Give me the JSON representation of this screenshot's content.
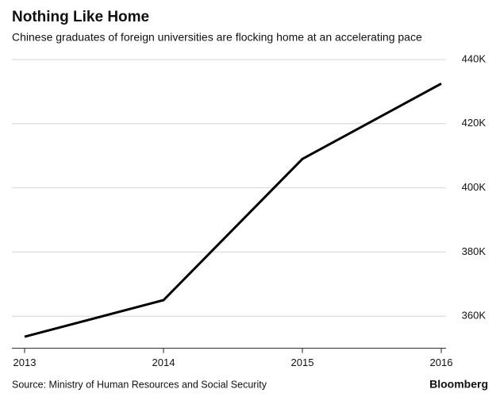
{
  "chart_data": {
    "type": "line",
    "title": "Nothing Like Home",
    "subtitle": "Chinese graduates of foreign universities are flocking home at an accelerating pace",
    "source": "Source: Ministry of Human Resources and Social Security",
    "brand": "Bloomberg",
    "x": [
      2013,
      2014,
      2015,
      2016
    ],
    "xlim": [
      2013,
      2016
    ],
    "xticks": [
      2013,
      2014,
      2015,
      2016
    ],
    "series": [
      {
        "color": "#000000",
        "values": [
          353600,
          365000,
          409000,
          432500
        ]
      }
    ],
    "ylim": [
      350000,
      440000
    ],
    "yticks": [
      {
        "value": 360000,
        "label": "360K"
      },
      {
        "value": 380000,
        "label": "380K"
      },
      {
        "value": 400000,
        "label": "400K"
      },
      {
        "value": 420000,
        "label": "420K"
      },
      {
        "value": 440000,
        "label": "440K"
      }
    ],
    "grid": true
  }
}
